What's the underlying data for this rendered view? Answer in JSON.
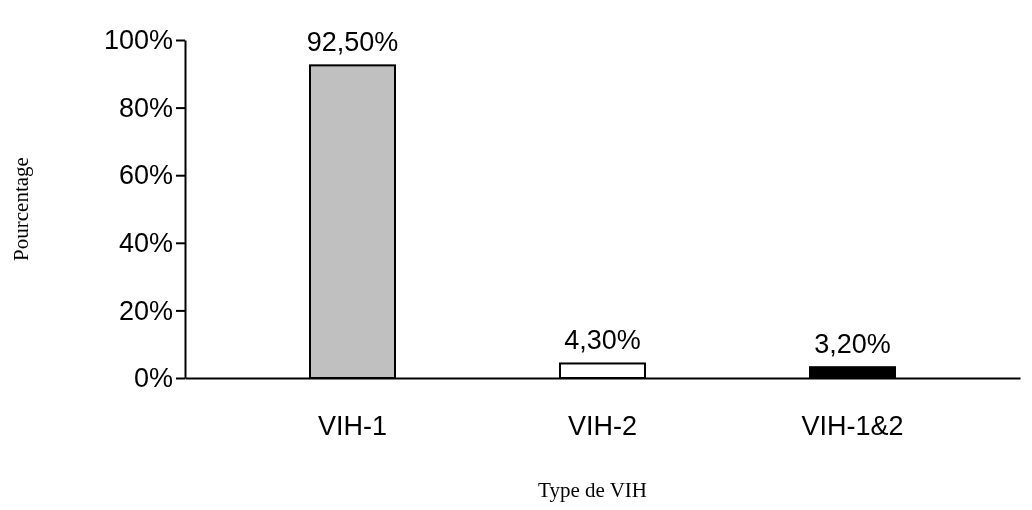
{
  "chart_data": {
    "type": "bar",
    "categories": [
      "VIH-1",
      "VIH-2",
      "VIH-1&2"
    ],
    "values": [
      92.5,
      4.3,
      3.2
    ],
    "colors": [
      "#c0c0c0",
      "#ffffff",
      "#000000"
    ],
    "value_labels": [
      "92,50%",
      "4,30%",
      "3,20%"
    ],
    "xlabel": "Type de VIH",
    "ylabel": "Pourcentage",
    "ylim": [
      0,
      100
    ],
    "yticks": [
      {
        "value": 0,
        "label": "0%"
      },
      {
        "value": 20,
        "label": "20%"
      },
      {
        "value": 40,
        "label": "40%"
      },
      {
        "value": 60,
        "label": "60%"
      },
      {
        "value": 80,
        "label": "80%"
      },
      {
        "value": 100,
        "label": "100%"
      }
    ],
    "grid": false
  }
}
